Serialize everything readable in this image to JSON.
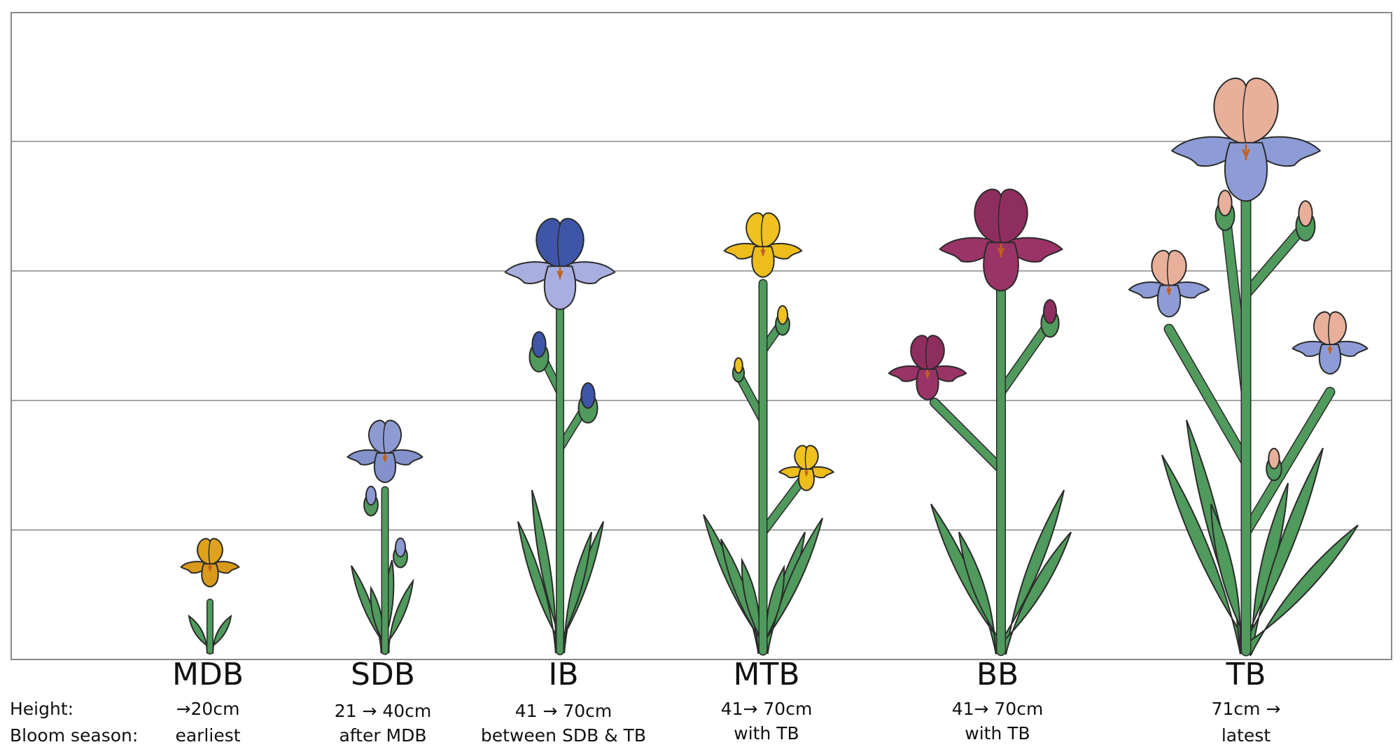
{
  "row_labels": {
    "height": "Height:",
    "bloom": "Bloom season:"
  },
  "categories": [
    {
      "name": "MDB",
      "height": "→20cm",
      "bloom": "earliest",
      "flower_color": "#e0a21a",
      "fall_color": "#d99a1c",
      "tier": 1
    },
    {
      "name": "SDB",
      "height": "21 → 40cm",
      "bloom": "after MDB",
      "flower_color": "#8e9ad2",
      "fall_color": "#8492cc",
      "tier": 2
    },
    {
      "name": "IB",
      "height": "41 → 70cm",
      "bloom": "between SDB & TB",
      "flower_color": "#3f55a8",
      "fall_color": "#a9aee0",
      "tier": 3
    },
    {
      "name": "MTB",
      "height": "41→ 70cm",
      "bloom": "with TB",
      "flower_color": "#f0c21f",
      "fall_color": "#edbd1c",
      "tier": 3
    },
    {
      "name": "BB",
      "height": "41→ 70cm",
      "bloom": "with TB",
      "flower_color": "#8e2e5e",
      "fall_color": "#9a3366",
      "tier": 3
    },
    {
      "name": "TB",
      "height": "71cm →",
      "bloom": "latest",
      "flower_color": "#e8b09a",
      "fall_color": "#8d9cd6",
      "tier": 4
    }
  ],
  "colors": {
    "stem": "#4f9a5c",
    "outline": "#2b2b2b",
    "grid": "#888888"
  }
}
